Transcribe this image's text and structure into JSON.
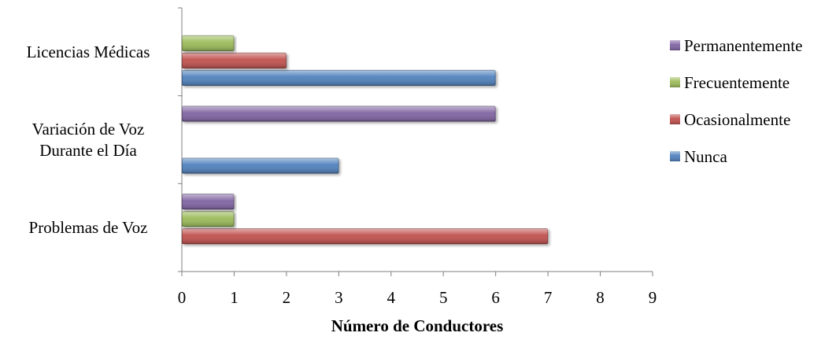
{
  "chart_data": {
    "type": "bar",
    "orientation": "horizontal",
    "categories": [
      [
        "Problemas de Voz"
      ],
      [
        "Variación de Voz",
        "Durante el Día"
      ],
      [
        "Licencias Médicas"
      ]
    ],
    "series": [
      {
        "name": "Nunca",
        "color": "#4F81BD",
        "values": [
          0,
          3,
          6
        ]
      },
      {
        "name": "Ocasionalmente",
        "color": "#C0504D",
        "values": [
          7,
          0,
          2
        ]
      },
      {
        "name": "Frecuentemente",
        "color": "#9BBB59",
        "values": [
          1,
          0,
          1
        ]
      },
      {
        "name": "Permanentemente",
        "color": "#8064A2",
        "values": [
          1,
          6,
          0
        ]
      }
    ],
    "xlabel": "Número de Conductores",
    "ylabel": "",
    "xlim": [
      0,
      9
    ],
    "xticks": [
      "0",
      "1",
      "2",
      "3",
      "4",
      "5",
      "6",
      "7",
      "8",
      "9"
    ],
    "grid": false,
    "legend_position": "right"
  }
}
